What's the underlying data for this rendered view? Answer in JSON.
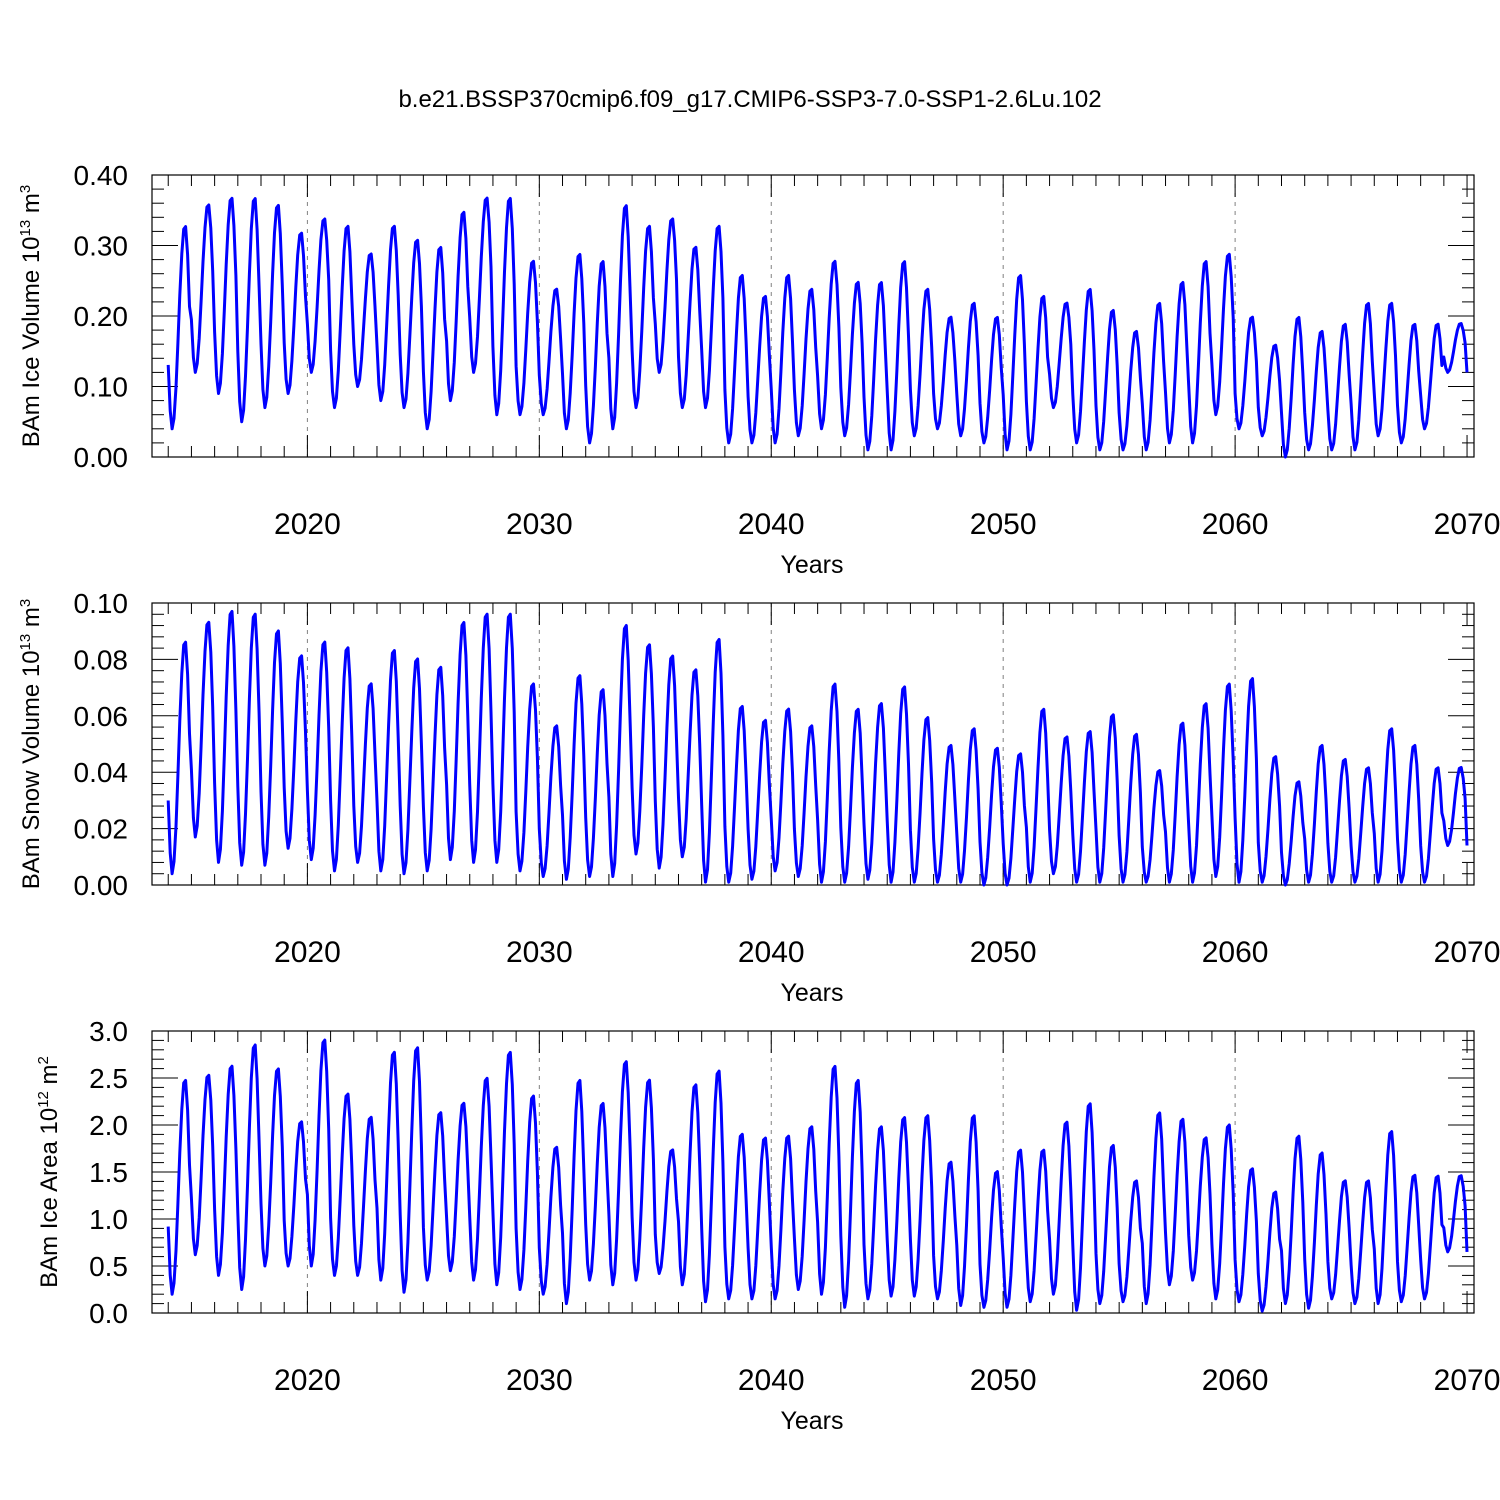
{
  "title": "b.e21.BSSP370cmip6.f09_g17.CMIP6-SSP3-7.0-SSP1-2.6Lu.102",
  "colors": {
    "series": "#0000ff",
    "axis": "#000000",
    "grid": "#808080"
  },
  "chart_data": [
    {
      "type": "line",
      "ylabel": {
        "text": "BAm Ice Volume 10",
        "exp": "13",
        "unit": " m",
        "unit_exp": "3"
      },
      "xlabel": "Years",
      "xlim": [
        2013.3,
        2070.3
      ],
      "ylim": [
        0.0,
        0.4
      ],
      "xticks": [
        2020,
        2030,
        2040,
        2050,
        2060,
        2070
      ],
      "yticks": [
        0.0,
        0.1,
        0.2,
        0.3,
        0.4
      ],
      "ytick_labels": [
        "0.00",
        "0.10",
        "0.20",
        "0.30",
        "0.40"
      ],
      "grid": "vertical dashed at major x ticks",
      "series": [
        {
          "start_year": 2014,
          "end_year": 2069,
          "annual_max": [
            0.33,
            0.36,
            0.37,
            0.37,
            0.36,
            0.32,
            0.34,
            0.33,
            0.29,
            0.33,
            0.31,
            0.3,
            0.35,
            0.37,
            0.37,
            0.28,
            0.24,
            0.29,
            0.28,
            0.36,
            0.33,
            0.34,
            0.3,
            0.33,
            0.26,
            0.23,
            0.26,
            0.24,
            0.28,
            0.25,
            0.25,
            0.28,
            0.24,
            0.2,
            0.22,
            0.2,
            0.26,
            0.23,
            0.22,
            0.24,
            0.21,
            0.18,
            0.22,
            0.25,
            0.28,
            0.29,
            0.2,
            0.16,
            0.2,
            0.18,
            0.19,
            0.22,
            0.22,
            0.19,
            0.19,
            0.19
          ],
          "annual_min": [
            0.04,
            0.12,
            0.09,
            0.05,
            0.07,
            0.09,
            0.12,
            0.07,
            0.1,
            0.08,
            0.07,
            0.04,
            0.08,
            0.12,
            0.06,
            0.06,
            0.06,
            0.04,
            0.02,
            0.04,
            0.07,
            0.12,
            0.07,
            0.07,
            0.02,
            0.02,
            0.02,
            0.03,
            0.04,
            0.03,
            0.01,
            0.01,
            0.03,
            0.04,
            0.03,
            0.02,
            0.01,
            0.01,
            0.07,
            0.02,
            0.01,
            0.01,
            0.01,
            0.02,
            0.02,
            0.06,
            0.04,
            0.03,
            0.0,
            0.01,
            0.01,
            0.01,
            0.03,
            0.02,
            0.04,
            0.12
          ]
        }
      ]
    },
    {
      "type": "line",
      "ylabel": {
        "text": "BAm Snow Volume 10",
        "exp": "13",
        "unit": " m",
        "unit_exp": "3"
      },
      "xlabel": "Years",
      "xlim": [
        2013.3,
        2070.3
      ],
      "ylim": [
        0.0,
        0.1
      ],
      "xticks": [
        2020,
        2030,
        2040,
        2050,
        2060,
        2070
      ],
      "yticks": [
        0.0,
        0.02,
        0.04,
        0.06,
        0.08,
        0.1
      ],
      "ytick_labels": [
        "0.00",
        "0.02",
        "0.04",
        "0.06",
        "0.08",
        "0.10"
      ],
      "grid": "vertical dashed at major x ticks",
      "series": [
        {
          "start_year": 2014,
          "end_year": 2069,
          "annual_max": [
            0.087,
            0.094,
            0.098,
            0.097,
            0.091,
            0.082,
            0.087,
            0.085,
            0.072,
            0.084,
            0.081,
            0.078,
            0.094,
            0.097,
            0.097,
            0.072,
            0.057,
            0.075,
            0.07,
            0.093,
            0.086,
            0.082,
            0.077,
            0.088,
            0.064,
            0.059,
            0.063,
            0.057,
            0.072,
            0.063,
            0.065,
            0.071,
            0.06,
            0.05,
            0.056,
            0.049,
            0.047,
            0.063,
            0.053,
            0.055,
            0.061,
            0.054,
            0.041,
            0.058,
            0.065,
            0.072,
            0.074,
            0.046,
            0.037,
            0.05,
            0.045,
            0.042,
            0.056,
            0.05,
            0.042,
            0.042
          ],
          "annual_min": [
            0.004,
            0.017,
            0.008,
            0.007,
            0.007,
            0.013,
            0.009,
            0.005,
            0.008,
            0.005,
            0.004,
            0.005,
            0.009,
            0.008,
            0.008,
            0.005,
            0.003,
            0.002,
            0.003,
            0.003,
            0.011,
            0.006,
            0.01,
            0.001,
            0.001,
            0.002,
            0.005,
            0.003,
            0.001,
            0.001,
            0.002,
            0.001,
            0.001,
            0.001,
            0.001,
            0.0,
            0.0,
            0.001,
            0.004,
            0.001,
            0.001,
            0.001,
            0.001,
            0.001,
            0.001,
            0.003,
            0.001,
            0.001,
            0.0,
            0.001,
            0.001,
            0.001,
            0.001,
            0.001,
            0.001,
            0.014
          ]
        }
      ]
    },
    {
      "type": "line",
      "ylabel": {
        "text": "BAm Ice Area 10",
        "exp": "12",
        "unit": " m",
        "unit_exp": "2"
      },
      "xlabel": "Years",
      "xlim": [
        2013.3,
        2070.3
      ],
      "ylim": [
        0.0,
        3.0
      ],
      "xticks": [
        2020,
        2030,
        2040,
        2050,
        2060,
        2070
      ],
      "yticks": [
        0.0,
        0.5,
        1.0,
        1.5,
        2.0,
        2.5,
        3.0
      ],
      "ytick_labels": [
        "0.0",
        "0.5",
        "1.0",
        "1.5",
        "2.0",
        "2.5",
        "3.0"
      ],
      "grid": "vertical dashed at major x ticks",
      "series": [
        {
          "start_year": 2014,
          "end_year": 2069,
          "annual_max": [
            2.5,
            2.55,
            2.65,
            2.88,
            2.62,
            2.05,
            2.93,
            2.35,
            2.1,
            2.8,
            2.85,
            2.15,
            2.25,
            2.52,
            2.8,
            2.33,
            1.78,
            2.5,
            2.25,
            2.7,
            2.5,
            1.75,
            2.45,
            2.6,
            1.92,
            1.88,
            1.9,
            2.0,
            2.65,
            2.5,
            2.0,
            2.1,
            2.12,
            1.62,
            2.12,
            1.52,
            1.75,
            1.75,
            2.05,
            2.25,
            1.8,
            1.42,
            2.15,
            2.08,
            1.88,
            2.02,
            1.55,
            1.3,
            1.9,
            1.72,
            1.42,
            1.42,
            1.95,
            1.48,
            1.47,
            1.47
          ],
          "annual_min": [
            0.2,
            0.62,
            0.4,
            0.25,
            0.5,
            0.5,
            0.5,
            0.4,
            0.4,
            0.35,
            0.22,
            0.35,
            0.45,
            0.35,
            0.3,
            0.25,
            0.2,
            0.1,
            0.35,
            0.3,
            0.35,
            0.42,
            0.3,
            0.12,
            0.15,
            0.15,
            0.15,
            0.25,
            0.2,
            0.06,
            0.15,
            0.18,
            0.18,
            0.15,
            0.08,
            0.06,
            0.06,
            0.12,
            0.2,
            0.03,
            0.1,
            0.12,
            0.1,
            0.3,
            0.35,
            0.15,
            0.12,
            0.02,
            0.1,
            0.05,
            0.15,
            0.1,
            0.1,
            0.12,
            0.15,
            0.65
          ]
        }
      ]
    }
  ]
}
